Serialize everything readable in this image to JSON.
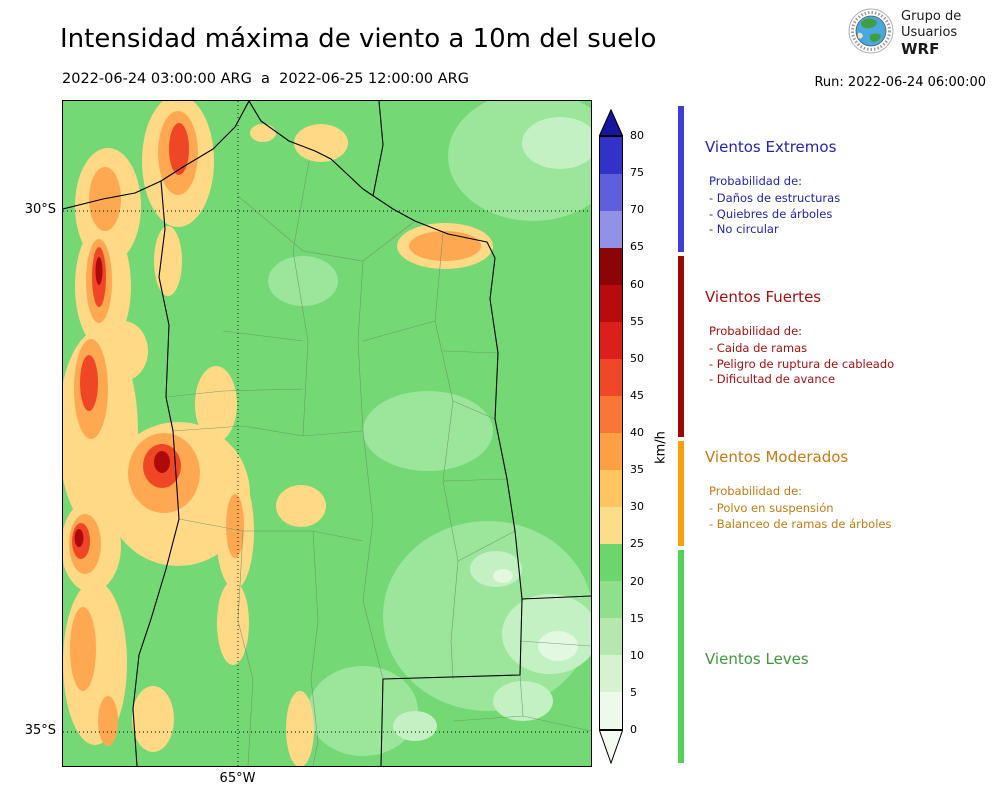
{
  "header": {
    "title": "Intensidad máxima de viento a 10m del suelo",
    "date_range": "2022-06-24 03:00:00 ARG  a  2022-06-25 12:00:00 ARG",
    "run_label": "Run: 2022-06-24 06:00:00",
    "logo": {
      "line1": "Grupo de",
      "line2": "Usuarios",
      "line3": "WRF"
    }
  },
  "map": {
    "lat_labels": [
      "30°S",
      "35°S"
    ],
    "lon_label": "65°W",
    "base_green": "#74d874"
  },
  "colorbar": {
    "unit": "km/h",
    "max_value": 80,
    "ticks": [
      0,
      5,
      10,
      15,
      20,
      25,
      30,
      35,
      40,
      45,
      50,
      55,
      60,
      65,
      70,
      75,
      80
    ],
    "arrow_top_color": "#15159e",
    "arrow_bottom_color": "#f4fbf0",
    "segments": [
      {
        "from": 0,
        "to": 5,
        "color": "#eef9ec"
      },
      {
        "from": 5,
        "to": 10,
        "color": "#d6f2d0"
      },
      {
        "from": 10,
        "to": 15,
        "color": "#b4e8ac"
      },
      {
        "from": 15,
        "to": 20,
        "color": "#90df8c"
      },
      {
        "from": 20,
        "to": 25,
        "color": "#6cd56c"
      },
      {
        "from": 25,
        "to": 30,
        "color": "#fedd8a"
      },
      {
        "from": 30,
        "to": 35,
        "color": "#fec561"
      },
      {
        "from": 35,
        "to": 40,
        "color": "#fd9f43"
      },
      {
        "from": 40,
        "to": 45,
        "color": "#f97634"
      },
      {
        "from": 45,
        "to": 50,
        "color": "#ef4828"
      },
      {
        "from": 50,
        "to": 55,
        "color": "#dc1f1c"
      },
      {
        "from": 55,
        "to": 60,
        "color": "#b80b0e"
      },
      {
        "from": 60,
        "to": 65,
        "color": "#8d0407"
      },
      {
        "from": 65,
        "to": 70,
        "color": "#9191e8"
      },
      {
        "from": 70,
        "to": 75,
        "color": "#5f5fdc"
      },
      {
        "from": 75,
        "to": 80,
        "color": "#3232c8"
      }
    ]
  },
  "legend": {
    "sections": [
      {
        "title": "Vientos Extremos",
        "text_color": "#2323b0",
        "bar_color": "#3d3dd8",
        "subtitle": "Probabilidad de:",
        "items": [
          "- Daños de estructuras",
          "- Quiebres de árboles",
          "- No circular"
        ]
      },
      {
        "title": "Vientos Fuertes",
        "text_color": "#a50f0f",
        "bar_color": "#9e0606",
        "subtitle": "Probabilidad de:",
        "items": [
          "- Caida de ramas",
          "- Peligro de ruptura de cableado",
          "- Dificultad de avance"
        ]
      },
      {
        "title": "Vientos Moderados",
        "text_color": "#c67b12",
        "bar_color": "#ff9d0a",
        "subtitle": "Probabilidad de:",
        "items": [
          "- Polvo en suspensión",
          "- Balanceo de ramas de árboles"
        ]
      },
      {
        "title": "Vientos Leves",
        "text_color": "#3d9b3d",
        "bar_color": "#52d152",
        "subtitle": "",
        "items": []
      }
    ]
  }
}
